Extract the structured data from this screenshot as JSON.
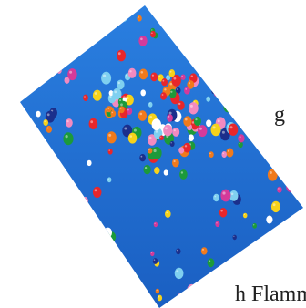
{
  "text_fragments": {
    "top_right": "g",
    "bottom_right": "h Flamm"
  },
  "photo": {
    "subject": "balloons-in-sky",
    "sky_color": "#1f6fd0",
    "balloon_colors": [
      "#e8262b",
      "#f6d21a",
      "#1c9a3a",
      "#ffffff",
      "#f28ac0",
      "#1b2f8c",
      "#f07a1c",
      "#7fd0f0",
      "#d43a9a"
    ]
  }
}
